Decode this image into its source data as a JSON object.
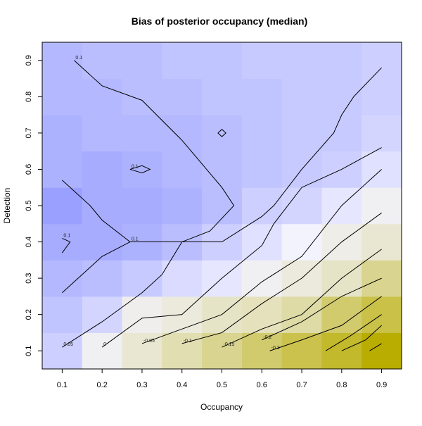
{
  "chart_data": {
    "type": "heatmap",
    "title": "Bias of posterior occupancy (median)",
    "xlabel": "Occupancy",
    "ylabel": "Detection",
    "xlim": [
      0.05,
      0.95
    ],
    "ylim": [
      0.05,
      0.95
    ],
    "x_ticks": [
      "0.1",
      "0.2",
      "0.3",
      "0.4",
      "0.5",
      "0.6",
      "0.7",
      "0.8",
      "0.9"
    ],
    "y_ticks": [
      "0.1",
      "0.2",
      "0.3",
      "0.4",
      "0.5",
      "0.6",
      "0.7",
      "0.8",
      "0.9"
    ],
    "grid": false,
    "legend": "none",
    "colors": {
      "low": "#9aa0ff",
      "zero": "#f3f3fe",
      "high": "#b8ad00"
    },
    "x": [
      0.1,
      0.2,
      0.3,
      0.4,
      0.5,
      0.6,
      0.7,
      0.8,
      0.9
    ],
    "y": [
      0.1,
      0.2,
      0.3,
      0.4,
      0.5,
      0.6,
      0.7,
      0.8,
      0.9
    ],
    "z": [
      [
        0.06,
        -0.02,
        -0.08,
        -0.14,
        -0.2,
        -0.26,
        -0.32,
        -0.38,
        -0.46
      ],
      [
        0.08,
        0.05,
        -0.03,
        -0.06,
        -0.1,
        -0.12,
        -0.16,
        -0.26,
        -0.33
      ],
      [
        0.1,
        0.09,
        0.07,
        0.04,
        0.02,
        -0.02,
        -0.06,
        -0.1,
        -0.2
      ],
      [
        0.12,
        0.12,
        0.11,
        0.09,
        0.06,
        0.03,
        0.0,
        -0.04,
        -0.08
      ],
      [
        0.14,
        0.12,
        0.12,
        0.11,
        0.09,
        0.06,
        0.05,
        0.02,
        -0.02
      ],
      [
        0.11,
        0.12,
        0.11,
        0.1,
        0.09,
        0.08,
        0.07,
        0.06,
        0.03
      ],
      [
        0.11,
        0.1,
        0.1,
        0.1,
        0.09,
        0.08,
        0.07,
        0.07,
        0.05
      ],
      [
        0.1,
        0.1,
        0.09,
        0.09,
        0.08,
        0.08,
        0.07,
        0.07,
        0.06
      ],
      [
        0.1,
        0.09,
        0.09,
        0.08,
        0.08,
        0.07,
        0.07,
        0.07,
        0.06
      ]
    ],
    "contours": [
      {
        "label": "0.1",
        "points": [
          [
            0.13,
            0.9
          ],
          [
            0.2,
            0.83
          ],
          [
            0.3,
            0.79
          ],
          [
            0.4,
            0.68
          ],
          [
            0.5,
            0.55
          ],
          [
            0.53,
            0.5
          ],
          [
            0.47,
            0.43
          ],
          [
            0.4,
            0.4
          ],
          [
            0.3,
            0.4
          ],
          [
            0.27,
            0.4
          ],
          [
            0.2,
            0.46
          ],
          [
            0.17,
            0.5
          ],
          [
            0.1,
            0.57
          ]
        ]
      },
      {
        "label": "0.1",
        "points": [
          [
            0.1,
            0.41
          ],
          [
            0.12,
            0.4
          ],
          [
            0.1,
            0.37
          ]
        ]
      },
      {
        "label": "0.1",
        "points": [
          [
            0.27,
            0.4
          ],
          [
            0.2,
            0.36
          ],
          [
            0.17,
            0.33
          ],
          [
            0.13,
            0.29
          ],
          [
            0.1,
            0.26
          ]
        ]
      },
      {
        "label": "0.1",
        "points": [
          [
            0.27,
            0.6
          ],
          [
            0.3,
            0.61
          ],
          [
            0.32,
            0.6
          ],
          [
            0.3,
            0.59
          ],
          [
            0.27,
            0.6
          ]
        ]
      },
      {
        "label": "",
        "points": [
          [
            0.49,
            0.7
          ],
          [
            0.5,
            0.71
          ],
          [
            0.51,
            0.7
          ],
          [
            0.5,
            0.69
          ],
          [
            0.49,
            0.7
          ]
        ]
      },
      {
        "label": "0.05",
        "points": [
          [
            0.1,
            0.11
          ],
          [
            0.2,
            0.18
          ],
          [
            0.3,
            0.26
          ],
          [
            0.35,
            0.31
          ],
          [
            0.4,
            0.4
          ],
          [
            0.5,
            0.4
          ],
          [
            0.6,
            0.47
          ],
          [
            0.63,
            0.5
          ],
          [
            0.7,
            0.6
          ],
          [
            0.78,
            0.7
          ],
          [
            0.8,
            0.75
          ],
          [
            0.83,
            0.8
          ],
          [
            0.9,
            0.88
          ]
        ]
      },
      {
        "label": "0",
        "points": [
          [
            0.2,
            0.11
          ],
          [
            0.3,
            0.19
          ],
          [
            0.4,
            0.2
          ],
          [
            0.5,
            0.3
          ],
          [
            0.6,
            0.39
          ],
          [
            0.63,
            0.45
          ],
          [
            0.7,
            0.55
          ],
          [
            0.8,
            0.6
          ],
          [
            0.9,
            0.66
          ]
        ]
      },
      {
        "label": "-0.05",
        "points": [
          [
            0.3,
            0.12
          ],
          [
            0.4,
            0.16
          ],
          [
            0.5,
            0.2
          ],
          [
            0.6,
            0.29
          ],
          [
            0.7,
            0.36
          ],
          [
            0.8,
            0.5
          ],
          [
            0.9,
            0.6
          ]
        ]
      },
      {
        "label": "-0.1",
        "points": [
          [
            0.4,
            0.12
          ],
          [
            0.5,
            0.15
          ],
          [
            0.6,
            0.23
          ],
          [
            0.7,
            0.3
          ],
          [
            0.8,
            0.4
          ],
          [
            0.9,
            0.48
          ]
        ]
      },
      {
        "label": "-0.15",
        "points": [
          [
            0.5,
            0.11
          ],
          [
            0.6,
            0.16
          ],
          [
            0.7,
            0.2
          ],
          [
            0.8,
            0.3
          ],
          [
            0.9,
            0.38
          ]
        ]
      },
      {
        "label": "-0.2",
        "points": [
          [
            0.6,
            0.13
          ],
          [
            0.7,
            0.18
          ],
          [
            0.8,
            0.25
          ],
          [
            0.9,
            0.3
          ]
        ]
      },
      {
        "label": "-0.3",
        "points": [
          [
            0.62,
            0.1
          ],
          [
            0.7,
            0.13
          ],
          [
            0.8,
            0.17
          ],
          [
            0.9,
            0.25
          ]
        ]
      },
      {
        "label": "",
        "points": [
          [
            0.76,
            0.1
          ],
          [
            0.82,
            0.14
          ],
          [
            0.9,
            0.2
          ]
        ]
      },
      {
        "label": "",
        "points": [
          [
            0.8,
            0.1
          ],
          [
            0.86,
            0.13
          ],
          [
            0.9,
            0.17
          ]
        ]
      },
      {
        "label": "",
        "points": [
          [
            0.87,
            0.1
          ],
          [
            0.9,
            0.12
          ]
        ]
      }
    ]
  }
}
